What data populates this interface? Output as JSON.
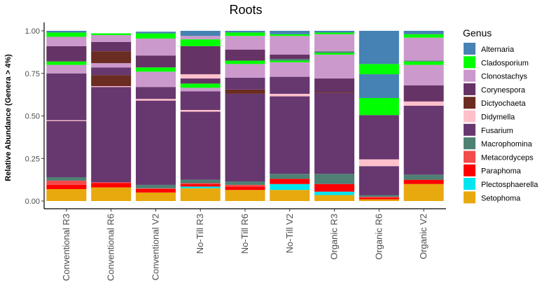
{
  "chart_data": {
    "type": "bar",
    "stacked": true,
    "title": "Roots",
    "ylabel": "Relative Abundance (Genera > 4%)",
    "xlabel": "",
    "ylim": [
      0,
      1
    ],
    "yticks": [
      "0.00",
      "0.25",
      "0.50",
      "0.75",
      "1.00"
    ],
    "ytick_values": [
      0,
      0.25,
      0.5,
      0.75,
      1.0
    ],
    "grid": false,
    "legend": {
      "title": "Genus",
      "position": "right"
    },
    "categories": [
      "Conventional R3",
      "Conventional R6",
      "Conventional V2",
      "No-Till R3",
      "No-Till R6",
      "No-Till V2",
      "Organic R3",
      "Organic R6",
      "Organic V2"
    ],
    "genera": [
      "Alternaria",
      "Cladosporium",
      "Clonostachys",
      "Corynespora",
      "Dictyochaeta",
      "Didymella",
      "Fusarium",
      "Macrophomina",
      "Metacordyceps",
      "Paraphoma",
      "Plectosphaerella",
      "Setophoma"
    ],
    "colors": {
      "Alternaria": "#4682B4",
      "Cladosporium": "#00FF00",
      "Clonostachys": "#CC99CC",
      "Corynespora": "#663366",
      "Dictyochaeta": "#6B2C22",
      "Didymella": "#FFC0CB",
      "Fusarium": "#673770",
      "Macrophomina": "#4E8074",
      "Metacordyceps": "#F34A4A",
      "Paraphoma": "#FF0000",
      "Plectosphaerella": "#00E5EE",
      "Setophoma": "#E8A90E"
    },
    "bars": [
      {
        "category": "Conventional R3",
        "segments": [
          {
            "genus": "Setophoma",
            "value": 0.07
          },
          {
            "genus": "Paraphoma",
            "value": 0.025
          },
          {
            "genus": "Metacordyceps",
            "value": 0.025
          },
          {
            "genus": "Macrophomina",
            "value": 0.02
          },
          {
            "genus": "Fusarium",
            "value": 0.33
          },
          {
            "genus": "Didymella",
            "value": 0.005
          },
          {
            "genus": "Fusarium",
            "value": 0.275
          },
          {
            "genus": "Clonostachys",
            "value": 0.05
          },
          {
            "genus": "Cladosporium",
            "value": 0.02
          },
          {
            "genus": "Corynespora",
            "value": 0.09
          },
          {
            "genus": "Clonostachys",
            "value": 0.055
          },
          {
            "genus": "Cladosporium",
            "value": 0.025
          },
          {
            "genus": "Alternaria",
            "value": 0.01
          }
        ]
      },
      {
        "category": "Conventional R6",
        "segments": [
          {
            "genus": "Setophoma",
            "value": 0.08
          },
          {
            "genus": "Paraphoma",
            "value": 0.025
          },
          {
            "genus": "Metacordyceps",
            "value": 0.005
          },
          {
            "genus": "Fusarium",
            "value": 0.56
          },
          {
            "genus": "Didymella",
            "value": 0.005
          },
          {
            "genus": "Dictyochaeta",
            "value": 0.065
          },
          {
            "genus": "Fusarium",
            "value": 0.045
          },
          {
            "genus": "Clonostachys",
            "value": 0.025
          },
          {
            "genus": "Corynespora",
            "value": 0.0
          },
          {
            "genus": "Dictyochaeta",
            "value": 0.07
          },
          {
            "genus": "Corynespora",
            "value": 0.055
          },
          {
            "genus": "Clonostachys",
            "value": 0.04
          },
          {
            "genus": "Cladosporium",
            "value": 0.01
          },
          {
            "genus": "Alternaria",
            "value": 0.0
          }
        ]
      },
      {
        "category": "Conventional V2",
        "segments": [
          {
            "genus": "Setophoma",
            "value": 0.05
          },
          {
            "genus": "Paraphoma",
            "value": 0.02
          },
          {
            "genus": "Metacordyceps",
            "value": 0.005
          },
          {
            "genus": "Macrophomina",
            "value": 0.02
          },
          {
            "genus": "Fusarium",
            "value": 0.495
          },
          {
            "genus": "Didymella",
            "value": 0.01
          },
          {
            "genus": "Fusarium",
            "value": 0.07
          },
          {
            "genus": "Clonostachys",
            "value": 0.09
          },
          {
            "genus": "Cladosporium",
            "value": 0.025
          },
          {
            "genus": "Corynespora",
            "value": 0.07
          },
          {
            "genus": "Clonostachys",
            "value": 0.1
          },
          {
            "genus": "Cladosporium",
            "value": 0.03
          },
          {
            "genus": "Alternaria",
            "value": 0.01
          }
        ]
      },
      {
        "category": "No-Till R3",
        "segments": [
          {
            "genus": "Setophoma",
            "value": 0.075
          },
          {
            "genus": "Plectosphaerella",
            "value": 0.01
          },
          {
            "genus": "Paraphoma",
            "value": 0.015
          },
          {
            "genus": "Metacordyceps",
            "value": 0.005
          },
          {
            "genus": "Macrophomina",
            "value": 0.02
          },
          {
            "genus": "Fusarium",
            "value": 0.4
          },
          {
            "genus": "Didymella",
            "value": 0.01
          },
          {
            "genus": "Fusarium",
            "value": 0.11
          },
          {
            "genus": "Clonostachys",
            "value": 0.02
          },
          {
            "genus": "Cladosporium",
            "value": 0.025
          },
          {
            "genus": "Corynespora",
            "value": 0.03
          },
          {
            "genus": "Didymella",
            "value": 0.025
          },
          {
            "genus": "Corynespora",
            "value": 0.165
          },
          {
            "genus": "Cladosporium",
            "value": 0.04
          },
          {
            "genus": "Clonostachys",
            "value": 0.02
          },
          {
            "genus": "Alternaria",
            "value": 0.03
          }
        ]
      },
      {
        "category": "No-Till R6",
        "segments": [
          {
            "genus": "Setophoma",
            "value": 0.065
          },
          {
            "genus": "Paraphoma",
            "value": 0.02
          },
          {
            "genus": "Metacordyceps",
            "value": 0.01
          },
          {
            "genus": "Macrophomina",
            "value": 0.02
          },
          {
            "genus": "Fusarium",
            "value": 0.515
          },
          {
            "genus": "Dictyochaeta",
            "value": 0.025
          },
          {
            "genus": "Fusarium",
            "value": 0.07
          },
          {
            "genus": "Clonostachys",
            "value": 0.08
          },
          {
            "genus": "Cladosporium",
            "value": 0.02
          },
          {
            "genus": "Corynespora",
            "value": 0.065
          },
          {
            "genus": "Clonostachys",
            "value": 0.08
          },
          {
            "genus": "Cladosporium",
            "value": 0.02
          },
          {
            "genus": "Alternaria",
            "value": 0.01
          }
        ]
      },
      {
        "category": "No-Till V2",
        "segments": [
          {
            "genus": "Setophoma",
            "value": 0.065
          },
          {
            "genus": "Plectosphaerella",
            "value": 0.035
          },
          {
            "genus": "Paraphoma",
            "value": 0.03
          },
          {
            "genus": "Macrophomina",
            "value": 0.03
          },
          {
            "genus": "Fusarium",
            "value": 0.455
          },
          {
            "genus": "Didymella",
            "value": 0.015
          },
          {
            "genus": "Fusarium",
            "value": 0.1
          },
          {
            "genus": "Clonostachys",
            "value": 0.085
          },
          {
            "genus": "Cladosporium",
            "value": 0.01
          },
          {
            "genus": "Macrophomina",
            "value": 0.01
          },
          {
            "genus": "Corynespora",
            "value": 0.025
          },
          {
            "genus": "Clonostachys",
            "value": 0.11
          },
          {
            "genus": "Cladosporium",
            "value": 0.01
          },
          {
            "genus": "Alternaria",
            "value": 0.02
          }
        ]
      },
      {
        "category": "Organic R3",
        "segments": [
          {
            "genus": "Setophoma",
            "value": 0.035
          },
          {
            "genus": "Plectosphaerella",
            "value": 0.02
          },
          {
            "genus": "Paraphoma",
            "value": 0.045
          },
          {
            "genus": "Macrophomina",
            "value": 0.06
          },
          {
            "genus": "Fusarium",
            "value": 0.475
          },
          {
            "genus": "Dictyochaeta",
            "value": 0.005
          },
          {
            "genus": "Corynespora",
            "value": 0.08
          },
          {
            "genus": "Clonostachys",
            "value": 0.14
          },
          {
            "genus": "Cladosporium",
            "value": 0.01
          },
          {
            "genus": "Macrophomina",
            "value": 0.01
          },
          {
            "genus": "Clonostachys",
            "value": 0.1
          },
          {
            "genus": "Cladosporium",
            "value": 0.01
          },
          {
            "genus": "Alternaria",
            "value": 0.01
          }
        ]
      },
      {
        "category": "Organic R6",
        "segments": [
          {
            "genus": "Setophoma",
            "value": 0.01
          },
          {
            "genus": "Paraphoma",
            "value": 0.01
          },
          {
            "genus": "Metacordyceps",
            "value": 0.005
          },
          {
            "genus": "Macrophomina",
            "value": 0.01
          },
          {
            "genus": "Fusarium",
            "value": 0.17
          },
          {
            "genus": "Didymella",
            "value": 0.04
          },
          {
            "genus": "Fusarium",
            "value": 0.26
          },
          {
            "genus": "Cladosporium",
            "value": 0.1
          },
          {
            "genus": "Alternaria",
            "value": 0.14
          },
          {
            "genus": "Cladosporium",
            "value": 0.06
          },
          {
            "genus": "Alternaria",
            "value": 0.195
          }
        ]
      },
      {
        "category": "Organic V2",
        "segments": [
          {
            "genus": "Setophoma",
            "value": 0.1
          },
          {
            "genus": "Paraphoma",
            "value": 0.025
          },
          {
            "genus": "Macrophomina",
            "value": 0.03
          },
          {
            "genus": "Fusarium",
            "value": 0.405
          },
          {
            "genus": "Didymella",
            "value": 0.025
          },
          {
            "genus": "Corynespora",
            "value": 0.095
          },
          {
            "genus": "Clonostachys",
            "value": 0.12
          },
          {
            "genus": "Cladosporium",
            "value": 0.02
          },
          {
            "genus": "Macrophomina",
            "value": 0.005
          },
          {
            "genus": "Clonostachys",
            "value": 0.135
          },
          {
            "genus": "Cladosporium",
            "value": 0.02
          },
          {
            "genus": "Alternaria",
            "value": 0.02
          }
        ]
      }
    ]
  }
}
